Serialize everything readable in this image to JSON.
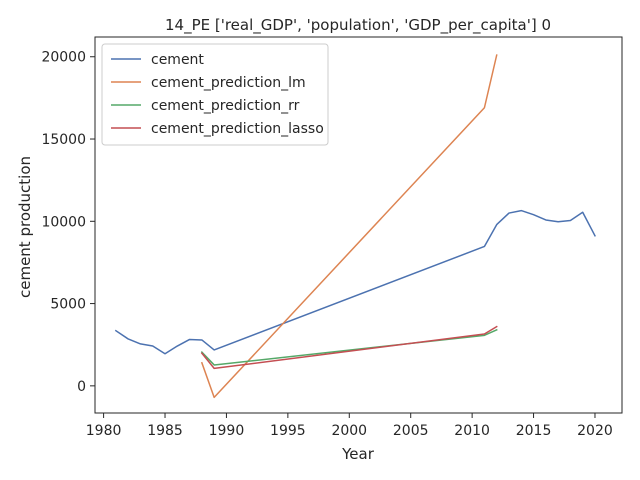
{
  "chart_data": {
    "type": "line",
    "title": "14_PE ['real_GDP', 'population', 'GDP_per_capita'] 0",
    "xlabel": "Year",
    "ylabel": "cement production",
    "xlim": [
      1979.3,
      2022.2
    ],
    "ylim": [
      -1650,
      21200
    ],
    "x_ticks": [
      1980,
      1985,
      1990,
      1995,
      2000,
      2005,
      2010,
      2015,
      2020
    ],
    "y_ticks": [
      0,
      5000,
      10000,
      15000,
      20000
    ],
    "grid": false,
    "legend_position": "top-left",
    "series": [
      {
        "name": "cement",
        "color": "#4c72b0",
        "x": [
          1981,
          1982,
          1983,
          1984,
          1985,
          1986,
          1987,
          1988,
          1989,
          2011,
          2012,
          2013,
          2014,
          2015,
          2016,
          2017,
          2018,
          2019,
          2020
        ],
        "y": [
          3350,
          2850,
          2550,
          2420,
          1950,
          2420,
          2820,
          2790,
          2180,
          8470,
          9800,
          10500,
          10650,
          10400,
          10080,
          9970,
          10050,
          10550,
          9120
        ]
      },
      {
        "name": "cement_prediction_lm",
        "color": "#dd8452",
        "x": [
          1988,
          1989,
          2011,
          2012
        ],
        "y": [
          1400,
          -700,
          16900,
          20100
        ]
      },
      {
        "name": "cement_prediction_rr",
        "color": "#55a868",
        "x": [
          1988,
          1989,
          2011,
          2012
        ],
        "y": [
          2050,
          1270,
          3070,
          3400
        ]
      },
      {
        "name": "cement_prediction_lasso",
        "color": "#c44e52",
        "x": [
          1988,
          1989,
          2011,
          2012
        ],
        "y": [
          1980,
          1060,
          3150,
          3600
        ]
      }
    ]
  }
}
